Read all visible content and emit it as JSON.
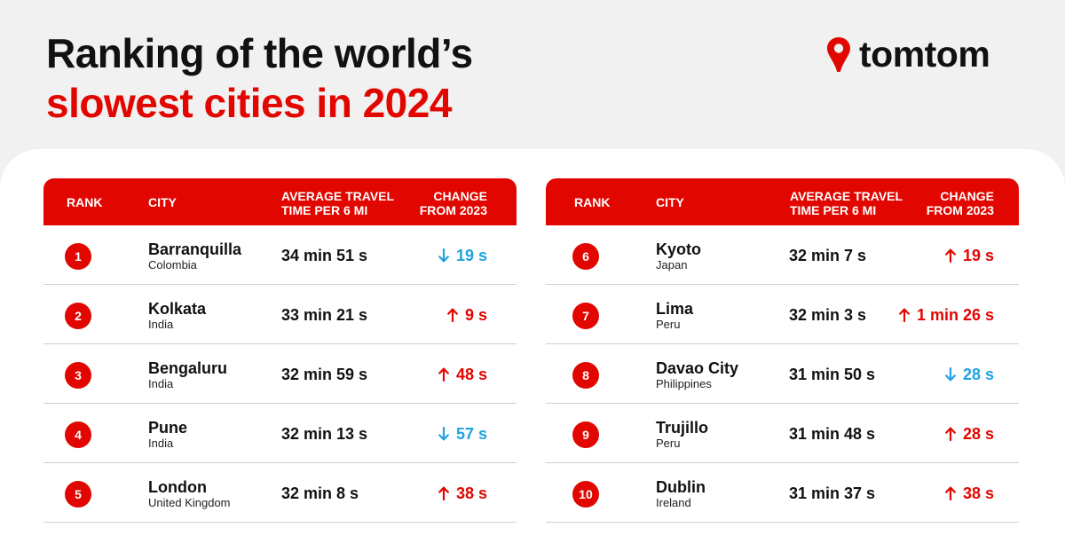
{
  "title": {
    "line1": "Ranking of the world’s",
    "line2": "slowest cities in 2024"
  },
  "brand": {
    "name": "tomtom",
    "icon": "map-pin-icon",
    "color": "#e10600"
  },
  "colors": {
    "accent": "#e10600",
    "increase": "#e10600",
    "decrease": "#1fa2e1"
  },
  "headers": {
    "rank": "RANK",
    "city": "CITY",
    "avg_line1": "AVERAGE TRAVEL",
    "avg_line2": "TIME PER 6 MI",
    "change_line1": "CHANGE",
    "change_line2": "FROM 2023"
  },
  "chart_data": {
    "type": "table",
    "columns": [
      "RANK",
      "CITY",
      "AVERAGE TRAVEL TIME PER 6 MI",
      "CHANGE FROM 2023"
    ],
    "rows": [
      {
        "rank": "1",
        "city": "Barranquilla",
        "country": "Colombia",
        "time": "34 min 51 s",
        "change": "19 s",
        "direction": "down"
      },
      {
        "rank": "2",
        "city": "Kolkata",
        "country": "India",
        "time": "33 min 21 s",
        "change": "9 s",
        "direction": "up"
      },
      {
        "rank": "3",
        "city": "Bengaluru",
        "country": "India",
        "time": "32 min 59 s",
        "change": "48 s",
        "direction": "up"
      },
      {
        "rank": "4",
        "city": "Pune",
        "country": "India",
        "time": "32 min 13 s",
        "change": "57 s",
        "direction": "down"
      },
      {
        "rank": "5",
        "city": "London",
        "country": "United Kingdom",
        "time": "32 min 8 s",
        "change": "38 s",
        "direction": "up"
      },
      {
        "rank": "6",
        "city": "Kyoto",
        "country": "Japan",
        "time": "32 min 7 s",
        "change": "19 s",
        "direction": "up"
      },
      {
        "rank": "7",
        "city": "Lima",
        "country": "Peru",
        "time": "32 min 3 s",
        "change": "1 min 26 s",
        "direction": "up"
      },
      {
        "rank": "8",
        "city": "Davao City",
        "country": "Philippines",
        "time": "31 min 50 s",
        "change": "28 s",
        "direction": "down"
      },
      {
        "rank": "9",
        "city": "Trujillo",
        "country": "Peru",
        "time": "31 min 48 s",
        "change": "28 s",
        "direction": "up"
      },
      {
        "rank": "10",
        "city": "Dublin",
        "country": "Ireland",
        "time": "31 min 37 s",
        "change": "38 s",
        "direction": "up"
      }
    ]
  }
}
